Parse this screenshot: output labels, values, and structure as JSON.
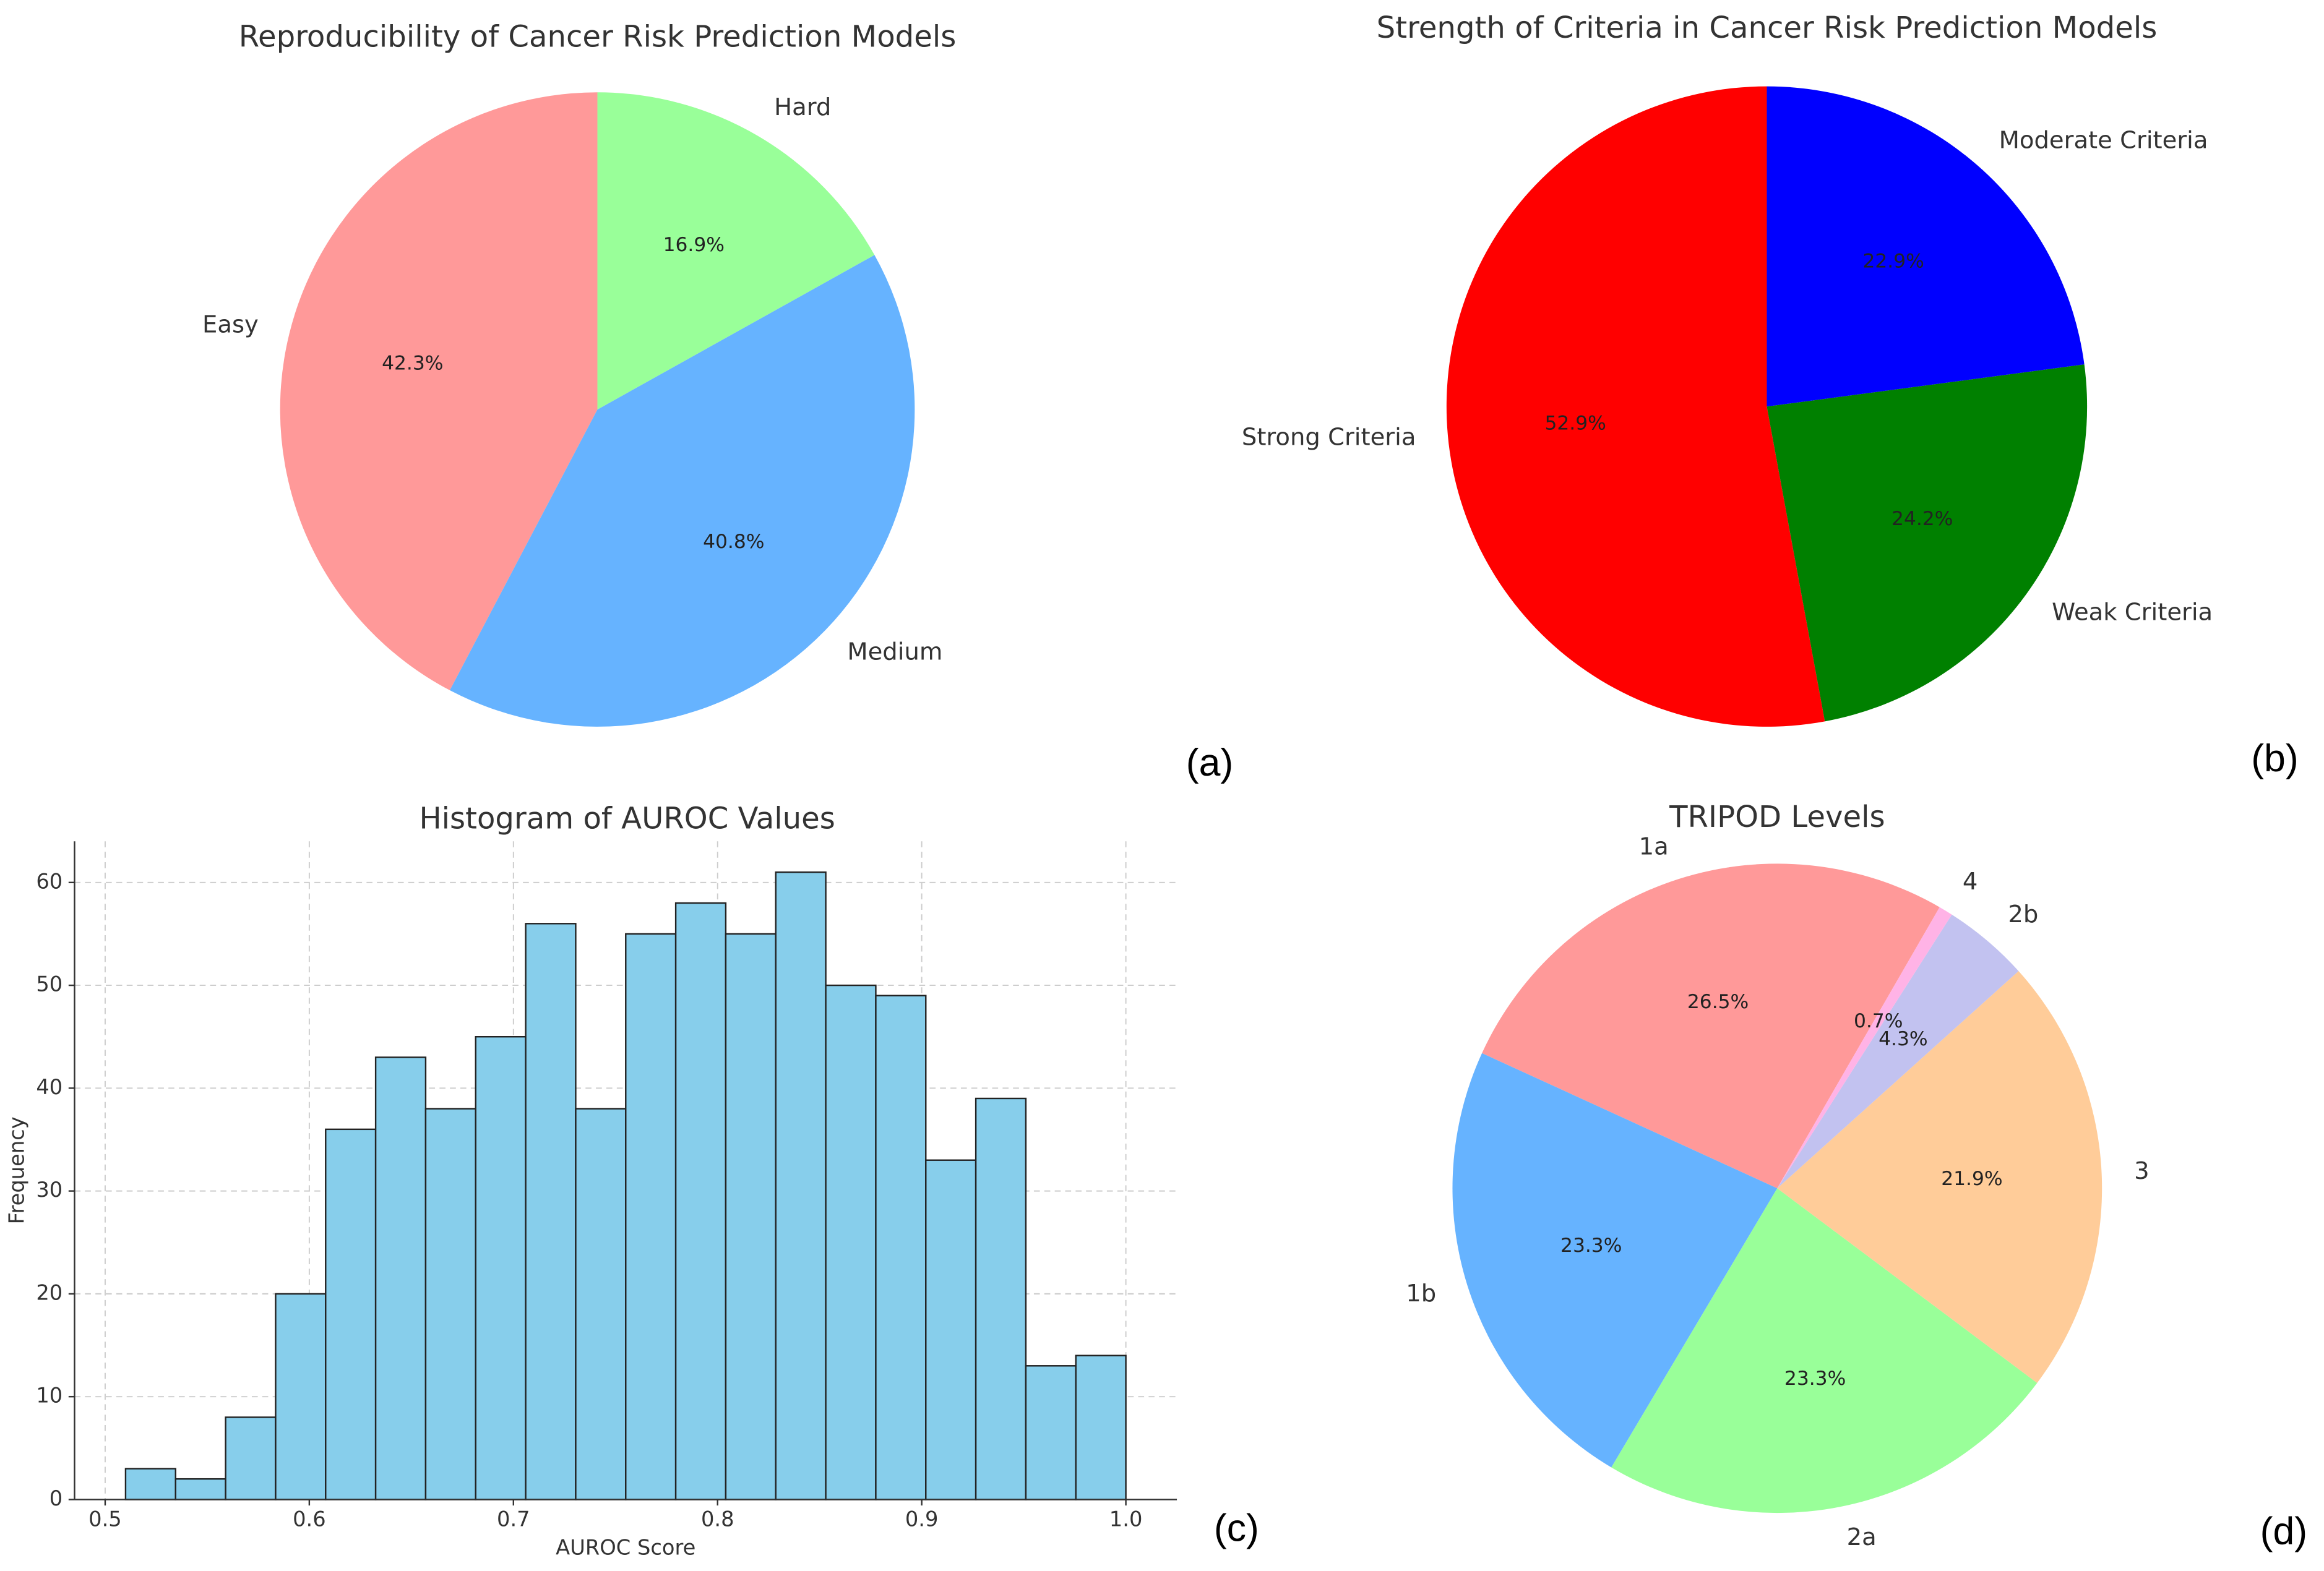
{
  "chart_data": [
    {
      "type": "pie",
      "title": "Reproducibility of Cancer Risk Prediction Models",
      "panel_label": "(a)",
      "categories": [
        "Easy",
        "Medium",
        "Hard"
      ],
      "values": [
        42.3,
        40.8,
        16.9
      ],
      "value_labels": [
        "42.3%",
        "40.8%",
        "16.9%"
      ],
      "colors": [
        "#ff9999",
        "#66b3ff",
        "#99ff99"
      ],
      "startangle": 90
    },
    {
      "type": "pie",
      "title": "Strength of Criteria in Cancer Risk Prediction Models",
      "panel_label": "(b)",
      "categories": [
        "Strong Criteria",
        "Weak Criteria",
        "Moderate Criteria"
      ],
      "values": [
        52.9,
        24.2,
        22.9
      ],
      "value_labels": [
        "52.9%",
        "24.2%",
        "22.9%"
      ],
      "colors": [
        "#ff0000",
        "#008000",
        "#0000ff"
      ],
      "startangle": 90
    },
    {
      "type": "histogram",
      "title": "Histogram of AUROC Values",
      "panel_label": "(c)",
      "x_label": "AUROC Score",
      "y_label": "Frequency",
      "color": "#87ceeb",
      "bins": [
        0.51,
        0.5345,
        0.559,
        0.5835,
        0.608,
        0.6325,
        0.657,
        0.6815,
        0.706,
        0.7305,
        0.755,
        0.7795,
        0.804,
        0.8285,
        0.853,
        0.8775,
        0.902,
        0.9265,
        0.951,
        0.9755,
        1.0
      ],
      "values": [
        3,
        2,
        8,
        20,
        36,
        43,
        38,
        45,
        56,
        38,
        55,
        58,
        55,
        61,
        50,
        49,
        33,
        39,
        13,
        14
      ],
      "xlim": [
        0.485,
        1.025
      ],
      "ylim": [
        0,
        64
      ],
      "xticks": [
        0.5,
        0.6,
        0.7,
        0.8,
        0.9,
        {
          "value": 1,
          "label": "1.0"
        }
      ],
      "yticks": [
        0,
        10,
        20,
        30,
        40,
        50,
        60
      ],
      "grid": true
    },
    {
      "type": "pie",
      "title": "TRIPOD Levels",
      "panel_label": "(d)",
      "categories": [
        "1a",
        "1b",
        "2a",
        "3",
        "2b",
        "4"
      ],
      "values": [
        26.5,
        23.3,
        23.3,
        21.9,
        4.3,
        0.7
      ],
      "value_labels": [
        "26.5%",
        "23.3%",
        "23.3%",
        "21.9%",
        "4.3%",
        "0.7%"
      ],
      "colors": [
        "#ff9999",
        "#66b3ff",
        "#99ff99",
        "#ffcc99",
        "#c2c2f0",
        "#ffb3e6"
      ],
      "startangle": 60
    }
  ]
}
